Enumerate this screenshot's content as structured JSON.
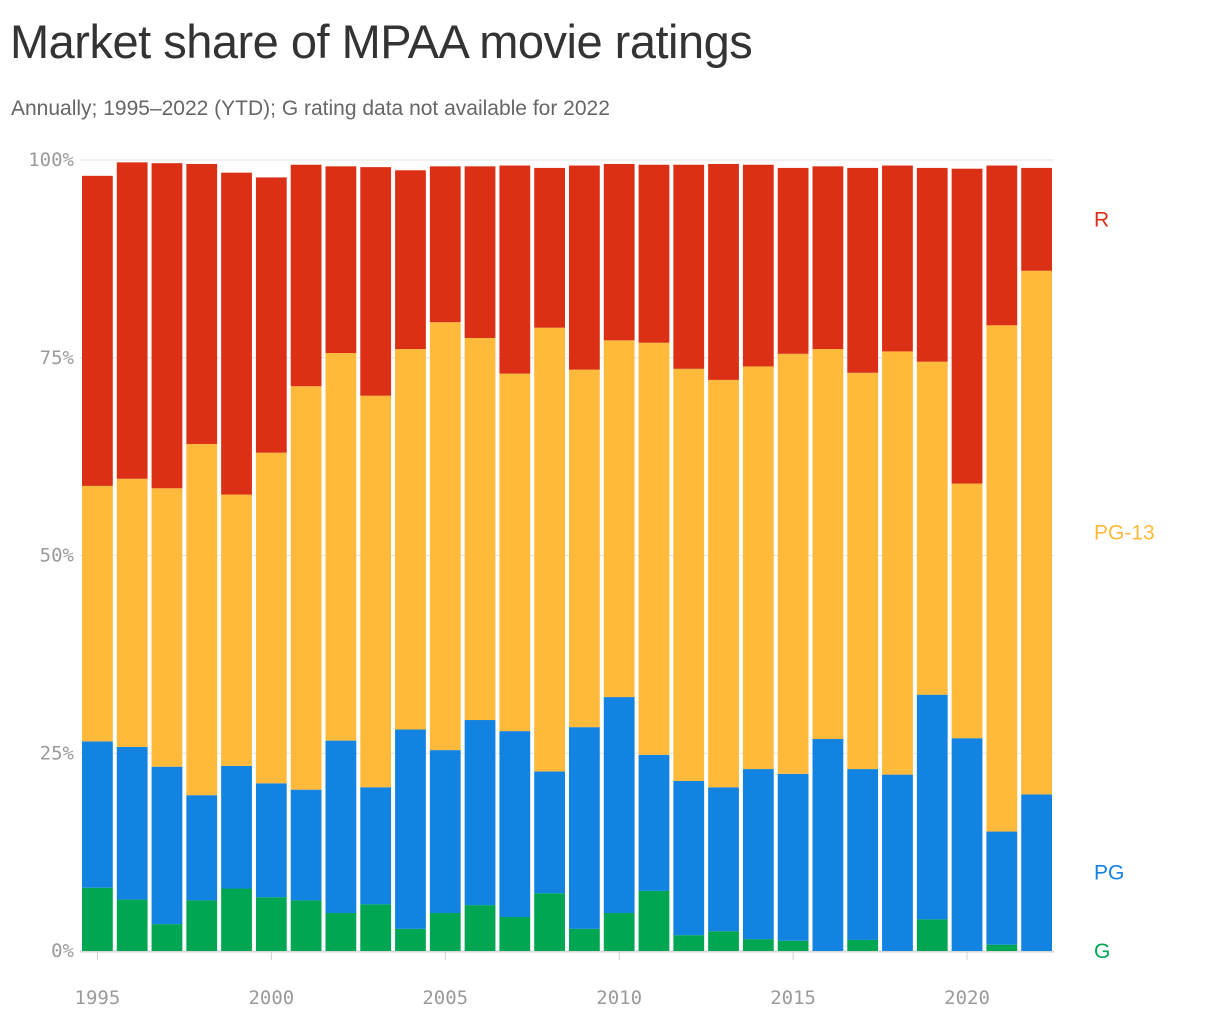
{
  "title": "Market share of MPAA movie ratings",
  "subtitle": "Annually; 1995–2022 (YTD); G rating data not available for 2022",
  "chart_data": {
    "type": "bar",
    "stacked": true,
    "title": "Market share of MPAA movie ratings",
    "subtitle": "Annually; 1995–2022 (YTD); G rating data not available for 2022",
    "xlabel": "",
    "ylabel": "",
    "ylim": [
      0,
      100
    ],
    "y_ticks": [
      0,
      25,
      50,
      75,
      100
    ],
    "y_tick_labels": [
      "0%",
      "25%",
      "50%",
      "75%",
      "100%"
    ],
    "x_ticks": [
      1995,
      2000,
      2005,
      2010,
      2015,
      2020
    ],
    "x_tick_labels": [
      "1995",
      "2000",
      "2005",
      "2010",
      "2015",
      "2020"
    ],
    "grid": true,
    "legend": "right",
    "categories": [
      1995,
      1996,
      1997,
      1998,
      1999,
      2000,
      2001,
      2002,
      2003,
      2004,
      2005,
      2006,
      2007,
      2008,
      2009,
      2010,
      2011,
      2012,
      2013,
      2014,
      2015,
      2016,
      2017,
      2018,
      2019,
      2020,
      2021,
      2022
    ],
    "series": [
      {
        "name": "G",
        "color": "#00a651",
        "values": [
          8.0,
          6.5,
          3.4,
          6.4,
          7.9,
          6.8,
          6.4,
          4.8,
          5.9,
          2.8,
          4.8,
          5.8,
          4.3,
          7.3,
          2.8,
          4.8,
          7.6,
          2.0,
          2.5,
          1.5,
          1.3,
          0.0,
          1.4,
          0.0,
          4.0,
          0.0,
          0.8,
          0.0
        ]
      },
      {
        "name": "PG",
        "color": "#1283e0",
        "values": [
          18.5,
          19.3,
          19.9,
          13.3,
          15.5,
          14.4,
          14.0,
          21.8,
          14.8,
          25.2,
          20.6,
          23.4,
          23.5,
          15.4,
          25.5,
          27.3,
          17.2,
          19.5,
          18.2,
          21.5,
          21.1,
          26.8,
          21.6,
          22.3,
          28.4,
          26.9,
          14.3,
          19.8
        ]
      },
      {
        "name": "PG-13",
        "color": "#ffb93b",
        "values": [
          32.3,
          33.9,
          35.2,
          44.4,
          34.3,
          41.8,
          51.0,
          49.0,
          49.5,
          48.1,
          54.1,
          48.3,
          45.2,
          56.1,
          45.2,
          45.1,
          52.1,
          52.1,
          51.5,
          50.9,
          53.1,
          49.3,
          50.1,
          53.5,
          42.1,
          32.2,
          64.0,
          66.2
        ]
      },
      {
        "name": "R",
        "color": "#db3016",
        "values": [
          39.2,
          40.0,
          41.1,
          35.4,
          40.7,
          34.8,
          28.0,
          23.6,
          28.9,
          22.6,
          19.7,
          21.7,
          26.3,
          20.2,
          25.8,
          22.3,
          22.5,
          25.8,
          27.3,
          25.5,
          23.5,
          23.1,
          25.9,
          23.5,
          24.5,
          39.8,
          20.2,
          13.0
        ]
      }
    ]
  }
}
